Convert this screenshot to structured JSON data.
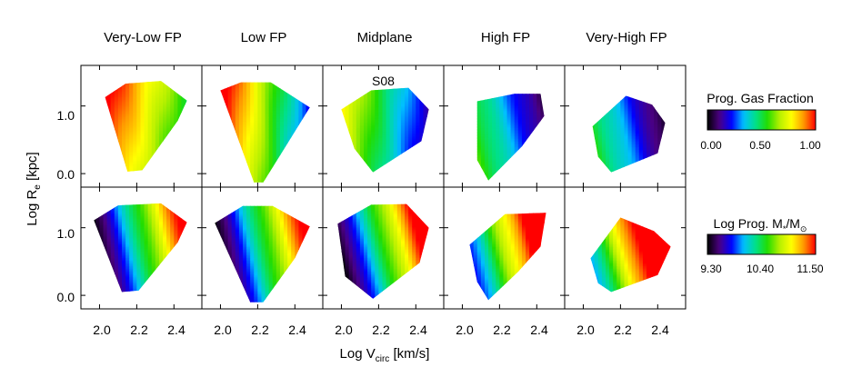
{
  "chart_data": {
    "type": "heatmap",
    "title": "",
    "column_titles": [
      "Very-Low FP",
      "Low FP",
      "Midplane",
      "High FP",
      "Very-High FP"
    ],
    "row_quantities": [
      "Prog. Gas Fraction",
      "Log Prog. M*/M⊙"
    ],
    "panel_label": "S08",
    "xlabel": "Log V",
    "xlabel_sub": "circ",
    "xlabel_unit": " [km/s]",
    "ylabel": "Log R",
    "ylabel_sub": "e",
    "ylabel_unit": " [kpc]",
    "xlim": [
      1.9,
      2.55
    ],
    "ylim": [
      -0.2,
      1.6
    ],
    "x_ticks": [
      2.0,
      2.2,
      2.4
    ],
    "x_tick_labels": [
      "2.0",
      "2.2",
      "2.4"
    ],
    "y_ticks": [
      0.0,
      1.0
    ],
    "y_tick_labels": [
      "0.0",
      "1.0"
    ],
    "colorbars": [
      {
        "title": "Prog. Gas Fraction",
        "min": 0.0,
        "max": 1.0,
        "tick_values": [
          0.0,
          0.5,
          1.0
        ],
        "tick_labels": [
          "0.00",
          "0.50",
          "1.00"
        ]
      },
      {
        "title_prefix": "Log Prog. M",
        "title_sub": "*",
        "title_mid": "/M",
        "title_sub2": "⊙",
        "min": 9.3,
        "max": 11.5,
        "tick_values": [
          9.3,
          10.4,
          11.5
        ],
        "tick_labels": [
          "9.30",
          "10.40",
          "11.50"
        ]
      }
    ],
    "panels": [
      {
        "row": 0,
        "col": 0,
        "label": "",
        "hull": [
          [
            2.03,
            1.13
          ],
          [
            2.14,
            1.33
          ],
          [
            2.33,
            1.37
          ],
          [
            2.47,
            1.08
          ],
          [
            2.42,
            0.78
          ],
          [
            2.23,
            0.05
          ],
          [
            2.15,
            0.03
          ]
        ],
        "field": {
          "base": 0.8,
          "gx": -1.2,
          "gy": 0.08
        }
      },
      {
        "row": 0,
        "col": 1,
        "label": "",
        "hull": [
          [
            2.0,
            1.23
          ],
          [
            2.11,
            1.35
          ],
          [
            2.27,
            1.35
          ],
          [
            2.48,
            0.98
          ],
          [
            2.35,
            0.4
          ],
          [
            2.23,
            -0.13
          ],
          [
            2.18,
            -0.13
          ]
        ],
        "field": {
          "base": 0.7,
          "gx": -1.8,
          "gy": 0.05
        }
      },
      {
        "row": 0,
        "col": 2,
        "label": "S08",
        "hull": [
          [
            2.0,
            0.95
          ],
          [
            2.16,
            1.23
          ],
          [
            2.36,
            1.27
          ],
          [
            2.47,
            0.95
          ],
          [
            2.43,
            0.48
          ],
          [
            2.17,
            0.02
          ],
          [
            2.07,
            0.37
          ]
        ],
        "field": {
          "base": 0.5,
          "gx": -1.4,
          "gy": 0.05
        }
      },
      {
        "row": 1,
        "col": 0,
        "label": "",
        "hull": [
          [
            1.97,
            1.11
          ],
          [
            2.1,
            1.33
          ],
          [
            2.33,
            1.36
          ],
          [
            2.47,
            1.08
          ],
          [
            2.42,
            0.78
          ],
          [
            2.21,
            0.07
          ],
          [
            2.12,
            0.05
          ]
        ],
        "field": {
          "base": 10.2,
          "gx": 4.8,
          "gy": 0.4
        }
      },
      {
        "row": 1,
        "col": 1,
        "label": "",
        "hull": [
          [
            1.97,
            1.07
          ],
          [
            2.12,
            1.32
          ],
          [
            2.28,
            1.32
          ],
          [
            2.48,
            1.02
          ],
          [
            2.4,
            0.55
          ],
          [
            2.23,
            -0.1
          ],
          [
            2.16,
            -0.1
          ]
        ],
        "field": {
          "base": 10.2,
          "gx": 4.8,
          "gy": 0.4
        }
      }
    ],
    "panels_right": [
      {
        "row": 0,
        "col": 3,
        "label": "",
        "hull": [
          [
            2.08,
            1.07
          ],
          [
            2.28,
            1.18
          ],
          [
            2.42,
            1.18
          ],
          [
            2.44,
            0.85
          ],
          [
            2.32,
            0.4
          ],
          [
            2.14,
            -0.1
          ],
          [
            2.08,
            0.2
          ]
        ],
        "field": {
          "base": 0.4,
          "gx": -1.3,
          "gy": -0.1
        }
      },
      {
        "row": 0,
        "col": 4,
        "label": "",
        "hull": [
          [
            2.05,
            0.7
          ],
          [
            2.23,
            1.15
          ],
          [
            2.37,
            1.02
          ],
          [
            2.44,
            0.75
          ],
          [
            2.4,
            0.3
          ],
          [
            2.15,
            0.02
          ],
          [
            2.08,
            0.25
          ]
        ],
        "field": {
          "base": 0.35,
          "gx": -1.3,
          "gy": -0.1
        }
      },
      {
        "row": 1,
        "col": 2,
        "label": "",
        "hull": [
          [
            1.98,
            1.06
          ],
          [
            2.16,
            1.34
          ],
          [
            2.35,
            1.35
          ],
          [
            2.47,
            1.0
          ],
          [
            2.42,
            0.48
          ],
          [
            2.17,
            -0.05
          ],
          [
            2.02,
            0.28
          ]
        ],
        "field": {
          "base": 10.3,
          "gx": 5.0,
          "gy": 0.5
        }
      },
      {
        "row": 1,
        "col": 3,
        "label": "",
        "hull": [
          [
            2.04,
            0.75
          ],
          [
            2.23,
            1.2
          ],
          [
            2.45,
            1.22
          ],
          [
            2.42,
            0.72
          ],
          [
            2.3,
            0.35
          ],
          [
            2.14,
            -0.07
          ],
          [
            2.08,
            0.2
          ]
        ],
        "field": {
          "base": 10.6,
          "gx": 5.2,
          "gy": 0.5
        }
      },
      {
        "row": 1,
        "col": 4,
        "label": "",
        "hull": [
          [
            2.04,
            0.55
          ],
          [
            2.2,
            1.15
          ],
          [
            2.38,
            0.95
          ],
          [
            2.47,
            0.72
          ],
          [
            2.4,
            0.3
          ],
          [
            2.15,
            0.05
          ],
          [
            2.08,
            0.18
          ]
        ],
        "field": {
          "base": 10.9,
          "gx": 5.4,
          "gy": 0.6
        }
      }
    ]
  }
}
